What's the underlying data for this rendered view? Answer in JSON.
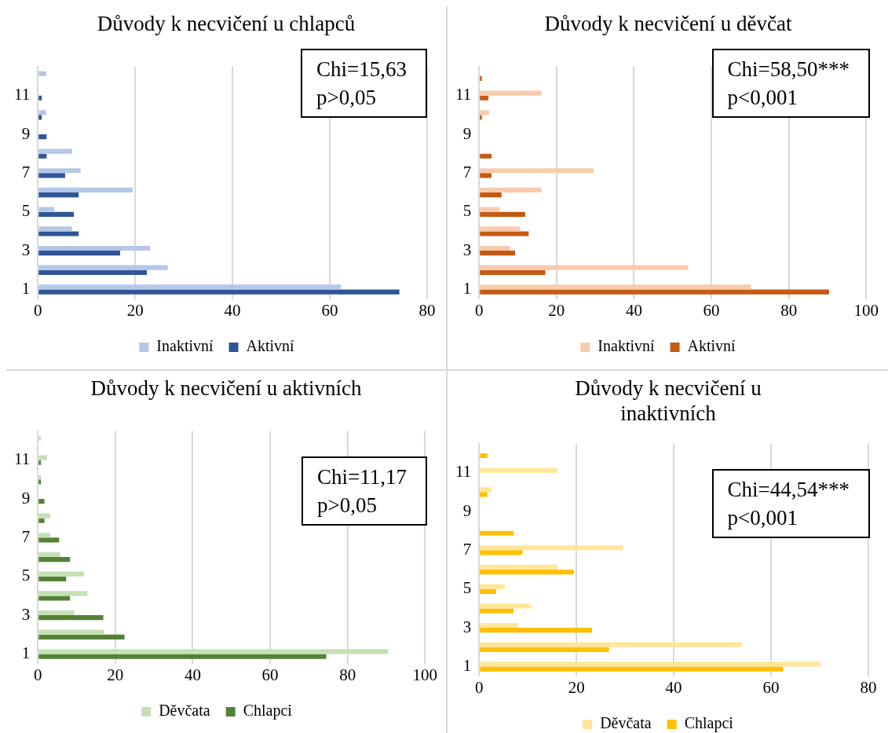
{
  "chart_data": [
    {
      "type": "bar",
      "orientation": "horizontal",
      "title": "Důvody k necvičení u chlapců",
      "categories": [
        null,
        "11",
        null,
        "9",
        null,
        "7",
        null,
        "5",
        null,
        "3",
        null,
        "1"
      ],
      "series": [
        {
          "name": "Inaktivní",
          "color": "#b4c7e7",
          "values": [
            1.7,
            0,
            1.7,
            0,
            7.0,
            8.8,
            19.5,
            3.4,
            7.0,
            23.1,
            26.7,
            62.3
          ]
        },
        {
          "name": "Aktivní",
          "color": "#2f5597",
          "values": [
            0,
            0.8,
            0.8,
            1.8,
            1.8,
            5.6,
            8.4,
            7.4,
            8.4,
            16.9,
            22.4,
            74.3
          ]
        }
      ],
      "xlim": [
        0,
        80
      ],
      "xticks": [
        0,
        20,
        40,
        60,
        80
      ],
      "grid": "x",
      "legend": "bottom",
      "annotations": [
        "Chi=15,63",
        "p>0,05"
      ]
    },
    {
      "type": "bar",
      "orientation": "horizontal",
      "title": "Důvody k necvičení u děvčat",
      "categories": [
        null,
        "11",
        null,
        "9",
        null,
        "7",
        null,
        "5",
        null,
        "3",
        null,
        "1"
      ],
      "series": [
        {
          "name": "Inaktivní",
          "color": "#f8cbad",
          "values": [
            0,
            16.1,
            2.6,
            0,
            0,
            29.6,
            16.1,
            5.3,
            10.6,
            8.0,
            54.0,
            70.2
          ]
        },
        {
          "name": "Aktivní",
          "color": "#c55a11",
          "values": [
            0.7,
            2.4,
            0.7,
            0,
            3.2,
            3.2,
            5.8,
            11.9,
            12.8,
            9.3,
            17.1,
            90.4
          ]
        }
      ],
      "xlim": [
        0,
        100
      ],
      "xticks": [
        0,
        20,
        40,
        60,
        80,
        100
      ],
      "grid": "x",
      "legend": "bottom",
      "annotations": [
        "Chi=58,50***",
        "p<0,001"
      ]
    },
    {
      "type": "bar",
      "orientation": "horizontal",
      "title": "Důvody k necvičení u aktivních",
      "categories": [
        null,
        "11",
        null,
        "9",
        null,
        "7",
        null,
        "5",
        null,
        "3",
        null,
        "1"
      ],
      "series": [
        {
          "name": "Děvčata",
          "color": "#c5e0b4",
          "values": [
            0.8,
            2.4,
            0.8,
            0,
            3.2,
            3.2,
            5.8,
            11.9,
            12.8,
            9.4,
            17.1,
            90.5
          ]
        },
        {
          "name": "Chlapci",
          "color": "#548235",
          "values": [
            0,
            0.8,
            0.8,
            1.7,
            1.7,
            5.5,
            8.3,
            7.3,
            8.3,
            16.9,
            22.4,
            74.5
          ]
        }
      ],
      "xlim": [
        0,
        100
      ],
      "xticks": [
        0,
        20,
        40,
        60,
        80,
        100
      ],
      "grid": "x",
      "legend": "bottom",
      "annotations": [
        "Chi=11,17",
        "p>0,05"
      ]
    },
    {
      "type": "bar",
      "orientation": "horizontal",
      "title": "Důvody k necvičení u inaktivních",
      "categories": [
        null,
        "11",
        null,
        "9",
        null,
        "7",
        null,
        "5",
        null,
        "3",
        null,
        "1"
      ],
      "series": [
        {
          "name": "Děvčata",
          "color": "#ffe699",
          "values": [
            0,
            16.1,
            2.6,
            0,
            0,
            29.6,
            16.1,
            5.3,
            10.7,
            8.0,
            54.0,
            70.2
          ]
        },
        {
          "name": "Chlapci",
          "color": "#ffc000",
          "values": [
            1.7,
            0,
            1.7,
            0,
            7.1,
            8.9,
            19.5,
            3.5,
            7.1,
            23.2,
            26.7,
            62.5
          ]
        }
      ],
      "xlim": [
        0,
        80
      ],
      "xticks": [
        0,
        20,
        40,
        60,
        80
      ],
      "grid": "x",
      "legend": "bottom",
      "annotations": [
        "Chi=44,54***",
        "p<0,001"
      ]
    }
  ]
}
